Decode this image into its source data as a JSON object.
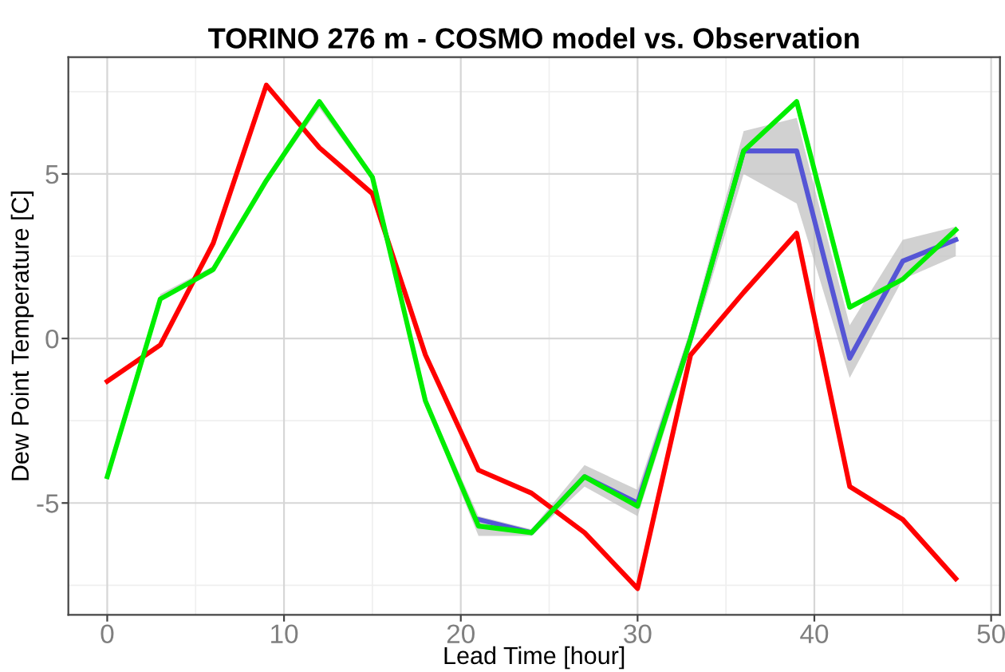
{
  "chart_data": {
    "type": "line",
    "title": "TORINO 276 m - COSMO model vs. Observation",
    "xlabel": "Lead Time [hour]",
    "ylabel": "Dew Point Temperature [C]",
    "x": [
      0,
      3,
      6,
      9,
      12,
      15,
      18,
      21,
      24,
      27,
      30,
      33,
      36,
      39,
      42,
      45,
      48
    ],
    "series": [
      {
        "color": "#ff0000",
        "values": [
          -1.3,
          -0.2,
          2.9,
          7.7,
          5.8,
          4.4,
          -0.5,
          -4.0,
          -4.7,
          -5.9,
          -7.6,
          -0.5,
          1.4,
          3.2,
          -4.5,
          -5.5,
          -7.3
        ]
      },
      {
        "color": "#5555d5",
        "values": [
          null,
          null,
          null,
          null,
          null,
          null,
          null,
          -5.5,
          -5.9,
          -4.2,
          -5.0,
          0.0,
          5.7,
          5.7,
          -0.6,
          2.35,
          3.0
        ],
        "lower": [
          -4.3,
          1.15,
          2.0,
          4.7,
          7.0,
          4.8,
          -2.0,
          -6.0,
          -6.0,
          -4.5,
          -5.4,
          -0.3,
          5.0,
          4.1,
          -1.2,
          1.8,
          2.5
        ],
        "upper": [
          -4.1,
          1.35,
          2.2,
          4.9,
          7.2,
          5.0,
          -1.8,
          -5.4,
          -5.8,
          -3.85,
          -4.6,
          0.3,
          6.3,
          6.7,
          0.4,
          3.0,
          3.4
        ]
      },
      {
        "color": "#00ee00",
        "values": [
          -4.2,
          1.2,
          2.1,
          4.8,
          7.2,
          4.9,
          -1.9,
          -5.7,
          -5.9,
          -4.2,
          -5.1,
          0.0,
          5.7,
          7.2,
          0.95,
          1.8,
          3.3
        ]
      }
    ],
    "xlim": [
      -2.2,
      50.5
    ],
    "ylim": [
      -8.4,
      8.55
    ],
    "xticks": [
      0,
      10,
      20,
      30,
      40,
      50
    ],
    "yticks": [
      -5,
      0,
      5
    ],
    "grid": true
  }
}
